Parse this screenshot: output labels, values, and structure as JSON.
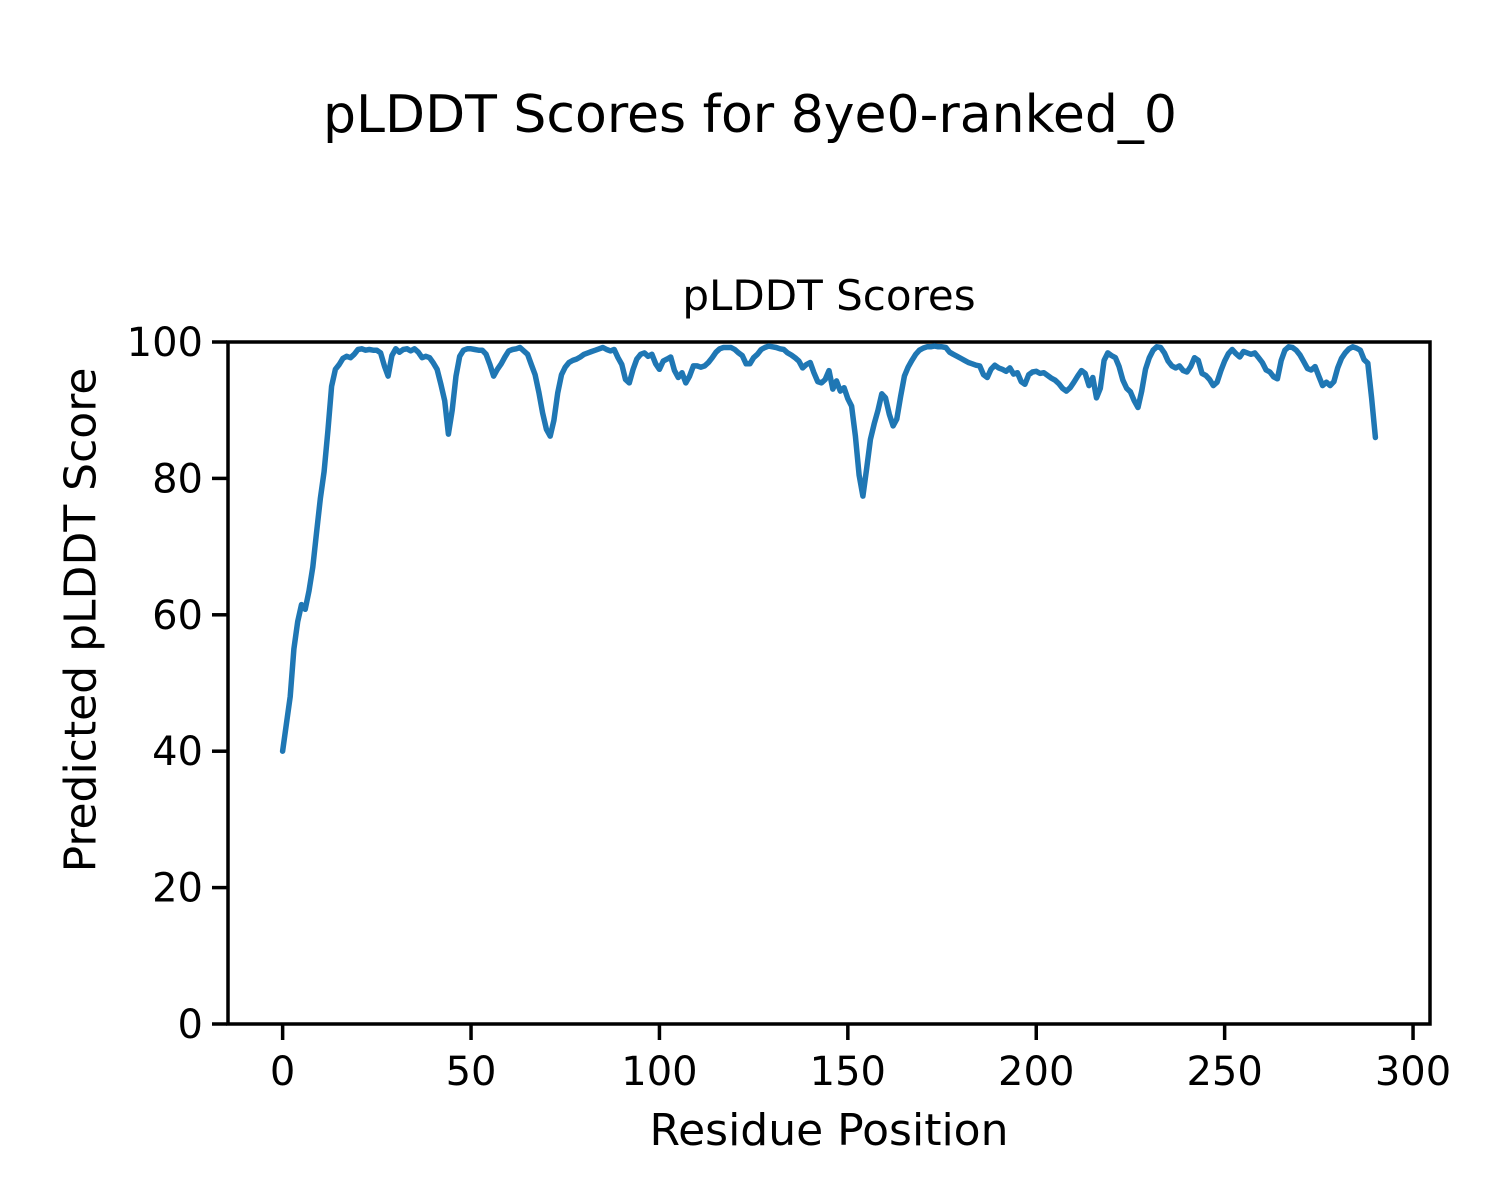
{
  "figure": {
    "suptitle": "pLDDT Scores for 8ye0-ranked_0",
    "background": "#ffffff",
    "text_color": "#000000"
  },
  "chart_data": {
    "type": "line",
    "title": "pLDDT Scores",
    "xlabel": "Residue Position",
    "ylabel": "Predicted pLDDT Score",
    "legend": "none",
    "grid": false,
    "x_ticks": [
      0,
      50,
      100,
      150,
      200,
      250,
      300
    ],
    "y_ticks": [
      0,
      20,
      40,
      60,
      80,
      100
    ],
    "xlim": [
      -14.5,
      304.5
    ],
    "ylim": [
      0,
      100
    ],
    "line_color": "#1f77b4",
    "line_width": 5.5,
    "spine_color": "#000000",
    "x_start": 0,
    "x_step": 1,
    "values": [
      40.0,
      44.0,
      48.0,
      55.0,
      59.0,
      61.5,
      60.8,
      63.5,
      67.0,
      72.0,
      77.0,
      81.0,
      87.0,
      93.5,
      96.0,
      96.7,
      97.6,
      97.9,
      97.7,
      98.2,
      98.9,
      99.0,
      98.8,
      98.9,
      98.8,
      98.8,
      98.4,
      96.5,
      95.0,
      98.0,
      99.0,
      98.5,
      98.9,
      99.0,
      98.7,
      99.0,
      98.5,
      97.7,
      97.9,
      97.7,
      96.9,
      96.0,
      93.8,
      91.4,
      86.5,
      90.0,
      95.0,
      97.9,
      98.8,
      99.0,
      99.0,
      98.9,
      98.8,
      98.8,
      98.2,
      96.7,
      95.0,
      96.0,
      96.8,
      97.8,
      98.7,
      98.9,
      99.0,
      99.2,
      98.7,
      98.2,
      96.7,
      95.2,
      92.6,
      89.6,
      87.2,
      86.2,
      88.5,
      92.5,
      95.2,
      96.3,
      97.0,
      97.3,
      97.5,
      97.8,
      98.2,
      98.4,
      98.6,
      98.8,
      99.0,
      99.2,
      98.9,
      98.7,
      98.9,
      97.7,
      96.7,
      94.5,
      94.0,
      96.0,
      97.5,
      98.2,
      98.4,
      97.9,
      98.2,
      96.8,
      96.0,
      97.2,
      97.5,
      97.8,
      95.8,
      94.8,
      95.5,
      94.0,
      95.0,
      96.5,
      96.5,
      96.3,
      96.5,
      97.0,
      97.7,
      98.5,
      99.0,
      99.2,
      99.2,
      99.2,
      98.9,
      98.4,
      98.0,
      96.8,
      96.8,
      97.7,
      98.2,
      98.9,
      99.2,
      99.4,
      99.3,
      99.2,
      99.0,
      98.9,
      98.4,
      98.1,
      97.7,
      97.2,
      96.2,
      96.7,
      97.0,
      95.5,
      94.2,
      94.0,
      94.5,
      95.8,
      93.1,
      94.3,
      92.8,
      93.3,
      91.7,
      90.6,
      86.2,
      80.5,
      77.4,
      81.5,
      85.7,
      88.0,
      90.0,
      92.4,
      91.8,
      89.4,
      87.7,
      88.7,
      92.0,
      95.0,
      96.3,
      97.3,
      98.2,
      98.8,
      99.1,
      99.3,
      99.3,
      99.4,
      99.3,
      99.3,
      99.2,
      98.5,
      98.2,
      97.9,
      97.6,
      97.3,
      97.0,
      96.8,
      96.6,
      96.5,
      95.2,
      94.8,
      96.0,
      96.6,
      96.2,
      96.0,
      95.7,
      96.2,
      95.3,
      95.5,
      94.2,
      93.8,
      95.2,
      95.6,
      95.7,
      95.4,
      95.5,
      95.1,
      94.7,
      94.4,
      93.9,
      93.2,
      92.8,
      93.3,
      94.1,
      95.0,
      95.8,
      95.4,
      93.6,
      94.8,
      91.8,
      93.2,
      97.3,
      98.4,
      98.0,
      97.7,
      96.4,
      94.4,
      93.2,
      92.7,
      91.4,
      90.4,
      92.8,
      96.0,
      97.7,
      98.8,
      99.3,
      99.2,
      98.4,
      97.2,
      96.5,
      96.2,
      96.5,
      95.8,
      95.6,
      96.4,
      97.7,
      97.3,
      95.4,
      95.1,
      94.5,
      93.6,
      94.1,
      95.8,
      97.2,
      98.3,
      98.9,
      98.3,
      97.8,
      98.6,
      98.4,
      98.2,
      98.4,
      97.7,
      97.0,
      95.9,
      95.6,
      94.9,
      94.6,
      97.3,
      98.8,
      99.3,
      99.2,
      98.8,
      98.1,
      97.1,
      96.1,
      95.9,
      96.4,
      95.0,
      93.6,
      94.1,
      93.6,
      94.2,
      96.2,
      97.6,
      98.4,
      99.0,
      99.3,
      99.1,
      98.8,
      97.4,
      96.9,
      91.8,
      86.0
    ]
  }
}
